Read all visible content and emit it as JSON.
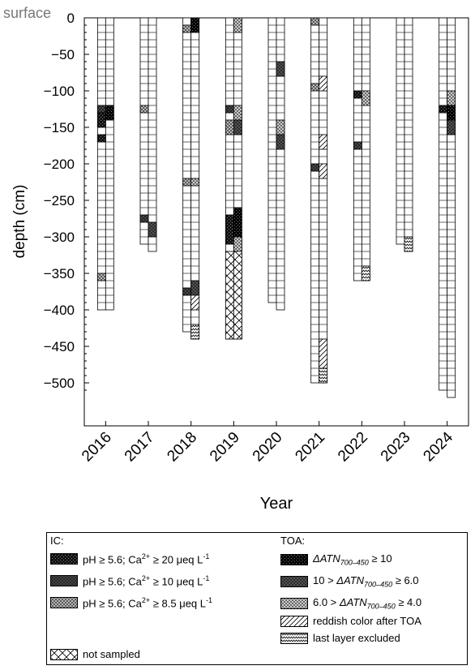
{
  "chart_data": {
    "type": "bar",
    "surface_label": "surface",
    "xlabel": "Year",
    "ylabel": "depth (cm)",
    "ylim": [
      -520,
      0
    ],
    "yticks": [
      0,
      -50,
      -100,
      -150,
      -200,
      -250,
      -300,
      -350,
      -400,
      -450,
      -500
    ],
    "ytick_labels": [
      "0",
      "−50",
      "−100",
      "−150",
      "−200",
      "−250",
      "−300",
      "−350",
      "−400",
      "−450",
      "−500"
    ],
    "categories": [
      "2016",
      "2017",
      "2018",
      "2019",
      "2020",
      "2021",
      "2022",
      "2023",
      "2024"
    ],
    "series": [
      {
        "name": "IC",
        "depth_bottom": [
          -400,
          -310,
          -430,
          -440,
          -390,
          -500,
          -360,
          -310,
          -510
        ]
      },
      {
        "name": "TOA",
        "depth_bottom": [
          -400,
          -320,
          -440,
          -440,
          -400,
          -500,
          -360,
          -320,
          -520
        ]
      }
    ],
    "layer_thickness_cm": 10,
    "segments": [
      {
        "year": "2016",
        "col": "IC",
        "top": -120,
        "bottom": -130,
        "class": "ic10"
      },
      {
        "year": "2016",
        "col": "IC",
        "top": -130,
        "bottom": -150,
        "class": "ic20"
      },
      {
        "year": "2016",
        "col": "IC",
        "top": -160,
        "bottom": -170,
        "class": "ic20"
      },
      {
        "year": "2016",
        "col": "IC",
        "top": -350,
        "bottom": -360,
        "class": "ic85"
      },
      {
        "year": "2016",
        "col": "TOA",
        "top": -120,
        "bottom": -140,
        "class": "toa10"
      },
      {
        "year": "2017",
        "col": "IC",
        "top": -120,
        "bottom": -130,
        "class": "ic85"
      },
      {
        "year": "2017",
        "col": "IC",
        "top": -270,
        "bottom": -280,
        "class": "ic10"
      },
      {
        "year": "2017",
        "col": "TOA",
        "top": -280,
        "bottom": -300,
        "class": "toa6"
      },
      {
        "year": "2018",
        "col": "IC",
        "top": -10,
        "bottom": -20,
        "class": "ic85"
      },
      {
        "year": "2018",
        "col": "IC",
        "top": -220,
        "bottom": -230,
        "class": "ic85"
      },
      {
        "year": "2018",
        "col": "IC",
        "top": -370,
        "bottom": -380,
        "class": "ic10"
      },
      {
        "year": "2018",
        "col": "TOA",
        "top": 0,
        "bottom": -20,
        "class": "toa10"
      },
      {
        "year": "2018",
        "col": "TOA",
        "top": -220,
        "bottom": -230,
        "class": "toa4"
      },
      {
        "year": "2018",
        "col": "TOA",
        "top": -360,
        "bottom": -380,
        "class": "toa6"
      },
      {
        "year": "2018",
        "col": "TOA",
        "top": -380,
        "bottom": -400,
        "class": "reddish"
      },
      {
        "year": "2018",
        "col": "TOA",
        "top": -420,
        "bottom": -440,
        "class": "excluded"
      },
      {
        "year": "2019",
        "col": "IC",
        "top": -120,
        "bottom": -130,
        "class": "ic10"
      },
      {
        "year": "2019",
        "col": "IC",
        "top": -140,
        "bottom": -160,
        "class": "ic85"
      },
      {
        "year": "2019",
        "col": "IC",
        "top": -270,
        "bottom": -310,
        "class": "ic20"
      },
      {
        "year": "2019",
        "col": "IC",
        "top": -320,
        "bottom": -440,
        "class": "notsampled"
      },
      {
        "year": "2019",
        "col": "TOA",
        "top": 0,
        "bottom": -20,
        "class": "toa4"
      },
      {
        "year": "2019",
        "col": "TOA",
        "top": -120,
        "bottom": -140,
        "class": "toa4"
      },
      {
        "year": "2019",
        "col": "TOA",
        "top": -140,
        "bottom": -160,
        "class": "toa6"
      },
      {
        "year": "2019",
        "col": "TOA",
        "top": -260,
        "bottom": -300,
        "class": "toa10"
      },
      {
        "year": "2019",
        "col": "TOA",
        "top": -300,
        "bottom": -320,
        "class": "toa4"
      },
      {
        "year": "2019",
        "col": "TOA",
        "top": -320,
        "bottom": -440,
        "class": "notsampled"
      },
      {
        "year": "2020",
        "col": "TOA",
        "top": -60,
        "bottom": -80,
        "class": "toa6"
      },
      {
        "year": "2020",
        "col": "TOA",
        "top": -140,
        "bottom": -160,
        "class": "toa4"
      },
      {
        "year": "2020",
        "col": "TOA",
        "top": -160,
        "bottom": -180,
        "class": "toa6"
      },
      {
        "year": "2021",
        "col": "IC",
        "top": 0,
        "bottom": -10,
        "class": "ic85"
      },
      {
        "year": "2021",
        "col": "IC",
        "top": -90,
        "bottom": -100,
        "class": "ic85"
      },
      {
        "year": "2021",
        "col": "IC",
        "top": -200,
        "bottom": -210,
        "class": "ic10"
      },
      {
        "year": "2021",
        "col": "TOA",
        "top": -80,
        "bottom": -100,
        "class": "reddish"
      },
      {
        "year": "2021",
        "col": "TOA",
        "top": -160,
        "bottom": -180,
        "class": "reddish"
      },
      {
        "year": "2021",
        "col": "TOA",
        "top": -200,
        "bottom": -220,
        "class": "reddish"
      },
      {
        "year": "2021",
        "col": "TOA",
        "top": -440,
        "bottom": -480,
        "class": "reddish"
      },
      {
        "year": "2021",
        "col": "TOA",
        "top": -480,
        "bottom": -500,
        "class": "excluded"
      },
      {
        "year": "2022",
        "col": "IC",
        "top": -100,
        "bottom": -110,
        "class": "ic20"
      },
      {
        "year": "2022",
        "col": "IC",
        "top": -170,
        "bottom": -180,
        "class": "ic10"
      },
      {
        "year": "2022",
        "col": "TOA",
        "top": -100,
        "bottom": -120,
        "class": "toa4"
      },
      {
        "year": "2022",
        "col": "TOA",
        "top": -340,
        "bottom": -360,
        "class": "excluded"
      },
      {
        "year": "2023",
        "col": "TOA",
        "top": -300,
        "bottom": -320,
        "class": "excluded"
      },
      {
        "year": "2024",
        "col": "IC",
        "top": -120,
        "bottom": -130,
        "class": "ic20"
      },
      {
        "year": "2024",
        "col": "TOA",
        "top": -100,
        "bottom": -120,
        "class": "toa4"
      },
      {
        "year": "2024",
        "col": "TOA",
        "top": -120,
        "bottom": -140,
        "class": "toa10"
      },
      {
        "year": "2024",
        "col": "TOA",
        "top": -140,
        "bottom": -160,
        "class": "toa6"
      }
    ],
    "legend": {
      "ic_title": "IC:",
      "toa_title": "TOA:",
      "ic_items": [
        {
          "class": "ic20",
          "text": "pH ≥ 5.6; Ca<sup>2+</sup> ≥ 20 μeq L<sup>-1</sup>"
        },
        {
          "class": "ic10",
          "text": "pH ≥ 5.6; Ca<sup>2+</sup> ≥ 10 μeq L<sup>-1</sup>"
        },
        {
          "class": "ic85",
          "text": "pH ≥ 5.6; Ca<sup>2+</sup> ≥ 8.5 μeq L<sup>-1</sup>"
        }
      ],
      "not_sampled": {
        "class": "notsampled",
        "text": "not sampled"
      },
      "toa_items": [
        {
          "class": "toa10",
          "text": "<i>ΔATN<sub>700–450</sub></i> ≥ 10"
        },
        {
          "class": "toa6",
          "text": "10 &gt; <i>ΔATN<sub>700–450</sub></i> ≥ 6.0"
        },
        {
          "class": "toa4",
          "text": "6.0 &gt; <i>ΔATN<sub>700–450</sub></i> ≥ 4.0"
        },
        {
          "class": "reddish",
          "text": "reddish color after TOA"
        },
        {
          "class": "excluded",
          "text": "last layer excluded"
        }
      ]
    }
  }
}
